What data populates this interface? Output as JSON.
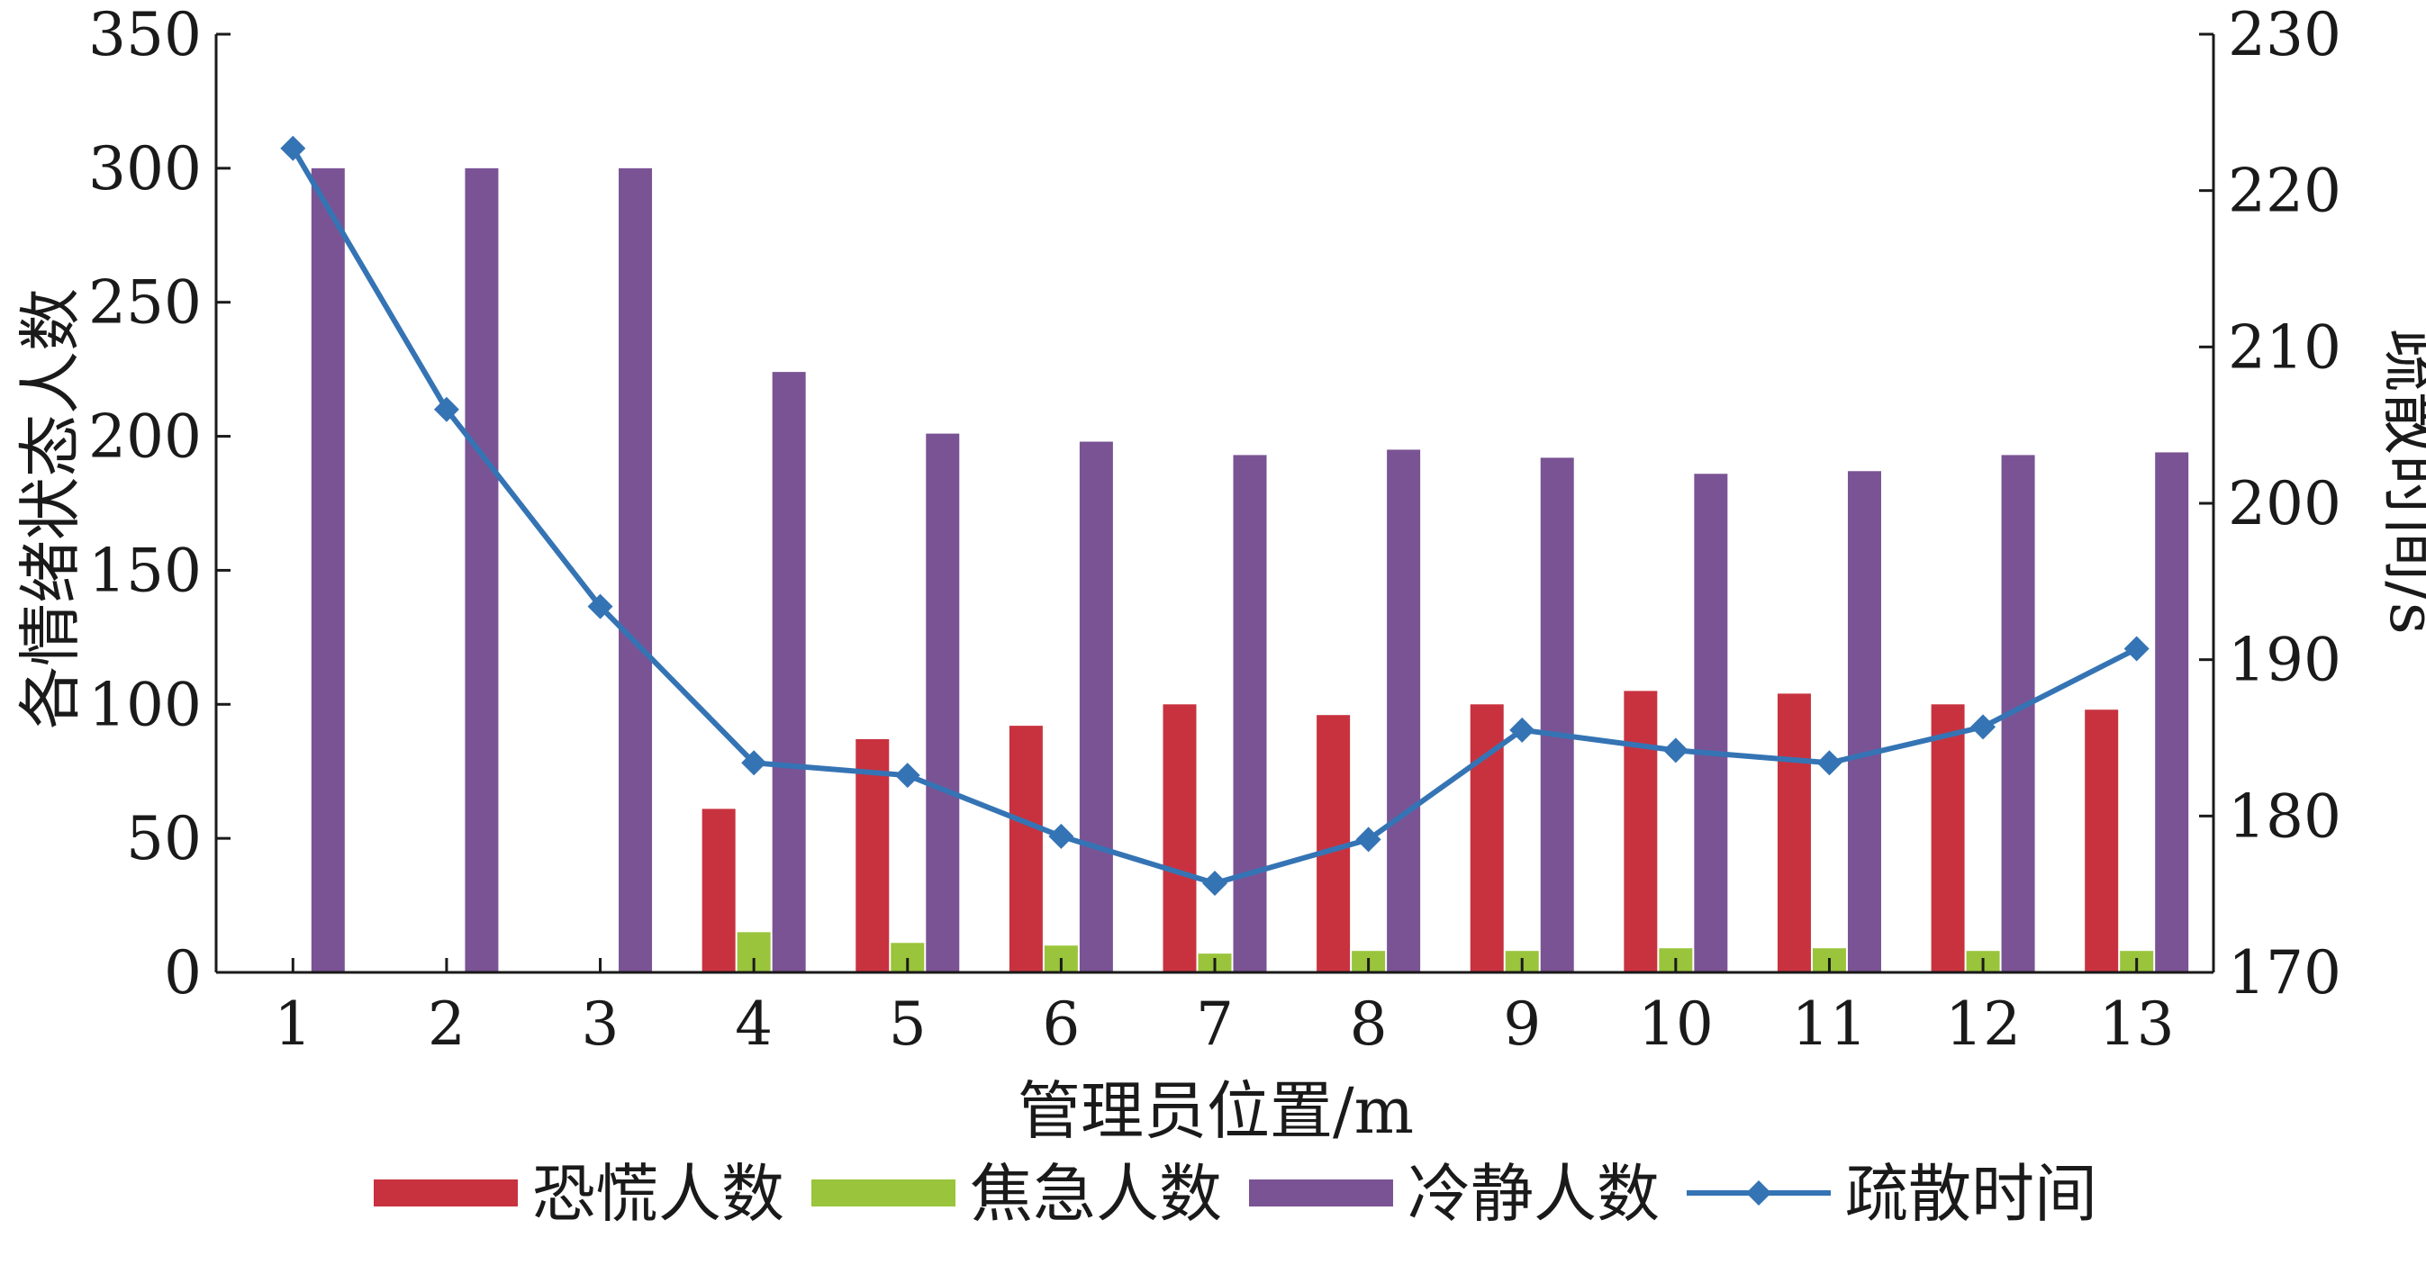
{
  "chart_data": {
    "type": "bar",
    "categories": [
      "1",
      "2",
      "3",
      "4",
      "5",
      "6",
      "7",
      "8",
      "9",
      "10",
      "11",
      "12",
      "13"
    ],
    "xlabel": "管理员位置/m",
    "ylabel": "各情绪状态人数",
    "ylabel_right": "疏散时间/s",
    "ylim": [
      0,
      350
    ],
    "yticks": [
      "0",
      "50",
      "100",
      "150",
      "200",
      "250",
      "300",
      "350"
    ],
    "ylim_right": [
      170,
      230
    ],
    "yticks_right": [
      "170",
      "180",
      "190",
      "200",
      "210",
      "220",
      "230"
    ],
    "grid": false,
    "legend_position": "bottom",
    "series": [
      {
        "name": "恐慌人数",
        "type": "bar",
        "axis": "left",
        "color": "#c8323f",
        "values": [
          0,
          0,
          0,
          61,
          87,
          92,
          100,
          96,
          100,
          105,
          104,
          100,
          98
        ]
      },
      {
        "name": "焦急人数",
        "type": "bar",
        "axis": "left",
        "color": "#9ac43c",
        "values": [
          0,
          0,
          0,
          15,
          11,
          10,
          7,
          8,
          8,
          9,
          9,
          8,
          8
        ]
      },
      {
        "name": "冷静人数",
        "type": "bar",
        "axis": "left",
        "color": "#7a5394",
        "values": [
          300,
          300,
          300,
          224,
          201,
          198,
          193,
          195,
          192,
          186,
          187,
          193,
          194
        ]
      },
      {
        "name": "疏散时间",
        "type": "line",
        "axis": "right",
        "color": "#3574b4",
        "marker": "diamond",
        "values": [
          222.7,
          206.0,
          193.4,
          183.4,
          182.6,
          178.7,
          175.7,
          178.5,
          185.5,
          184.2,
          183.4,
          185.7,
          190.7
        ]
      }
    ]
  }
}
